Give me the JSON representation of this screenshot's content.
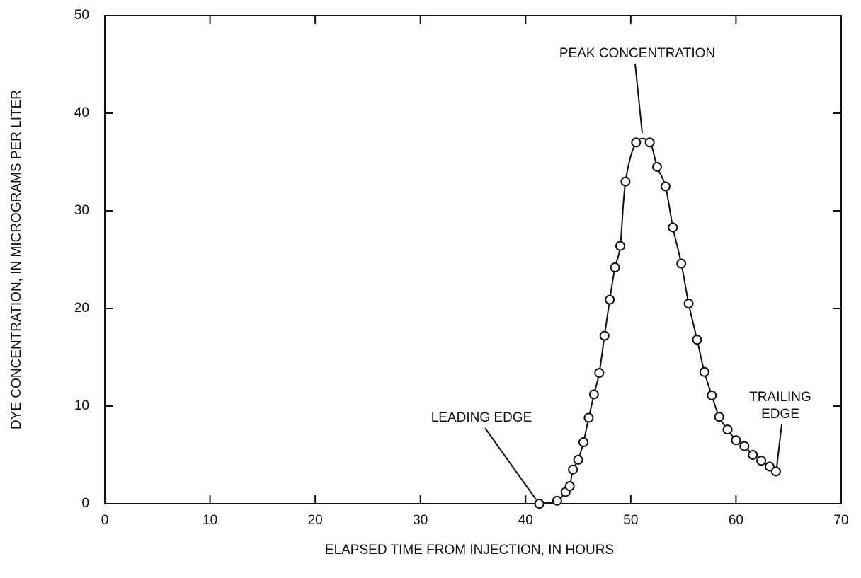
{
  "chart_data": {
    "type": "line",
    "x_label": "ELAPSED TIME FROM INJECTION, IN HOURS",
    "y_label": "DYE CONCENTRATION, IN MICROGRAMS PER LITER",
    "xlim": [
      0,
      70
    ],
    "ylim": [
      0,
      50
    ],
    "xticks": [
      0,
      10,
      20,
      30,
      40,
      50,
      60,
      70
    ],
    "yticks": [
      0,
      10,
      20,
      30,
      40,
      50
    ],
    "x": [
      41.3,
      43.0,
      43.8,
      44.2,
      44.5,
      45.0,
      45.5,
      46.0,
      46.5,
      47.0,
      47.5,
      48.0,
      48.5,
      49.0,
      49.5,
      50.5,
      51.8,
      52.5,
      53.3,
      54.0,
      54.8,
      55.5,
      56.3,
      57.0,
      57.7,
      58.4,
      59.2,
      60.0,
      60.8,
      61.6,
      62.4,
      63.2,
      63.8
    ],
    "series": [
      {
        "color": "#111111",
        "values": [
          0,
          0.3,
          1.2,
          1.8,
          3.5,
          4.5,
          6.3,
          8.8,
          11.2,
          13.4,
          17.2,
          20.9,
          24.2,
          26.4,
          33.0,
          37.0,
          37.0,
          34.5,
          32.5,
          28.3,
          24.6,
          20.5,
          16.8,
          13.5,
          11.1,
          8.9,
          7.6,
          6.5,
          5.9,
          5.0,
          4.4,
          3.8,
          3.3
        ]
      }
    ],
    "annotations": [
      {
        "lines": [
          "PEAK CONCENTRATION"
        ]
      },
      {
        "lines": [
          "LEADING EDGE"
        ]
      },
      {
        "lines": [
          "TRAILING",
          "EDGE"
        ]
      }
    ]
  }
}
